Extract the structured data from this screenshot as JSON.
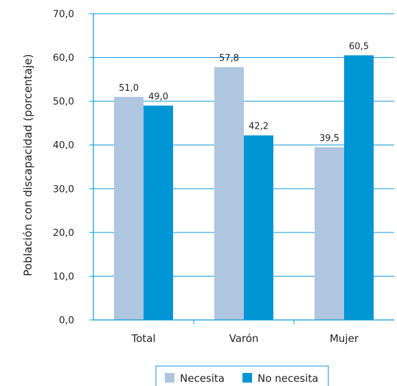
{
  "chart_data": {
    "type": "bar",
    "title": "",
    "xlabel": "",
    "ylabel": "Población con discapacidad (porcentaje)",
    "ylim": [
      0,
      70
    ],
    "yticks": [
      "0,0",
      "10,0",
      "20,0",
      "30,0",
      "40,0",
      "50,0",
      "60,0",
      "70,0"
    ],
    "categories": [
      "Total",
      "Varón",
      "Mujer"
    ],
    "series": [
      {
        "name": "Necesita",
        "values": [
          51.0,
          57.8,
          39.5
        ],
        "labels": [
          "51,0",
          "57,8",
          "39,5"
        ],
        "color": "#afc6e0"
      },
      {
        "name": "No necesita",
        "values": [
          49.0,
          42.2,
          60.5
        ],
        "labels": [
          "49,0",
          "42,2",
          "60,5"
        ],
        "color": "#0096d6"
      }
    ],
    "grid": true,
    "legend_position": "bottom",
    "axis_color": "#0096d6",
    "grid_color": "#0096d6"
  }
}
